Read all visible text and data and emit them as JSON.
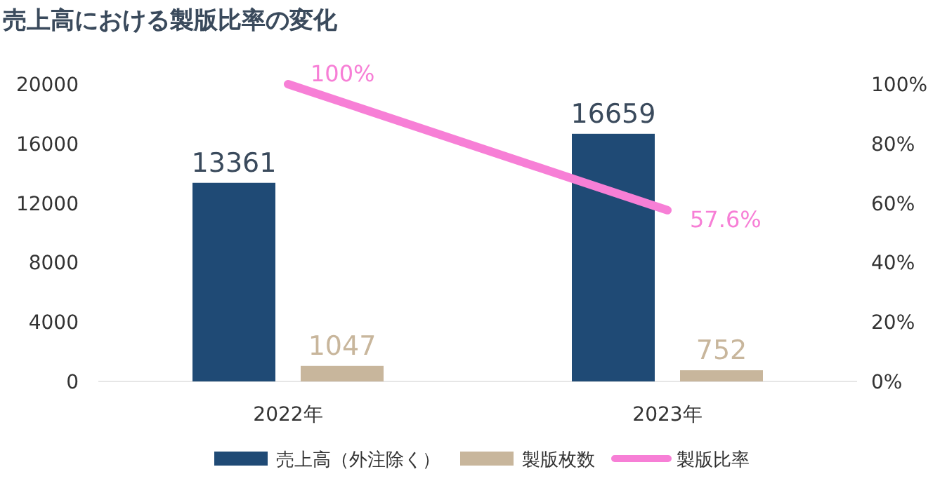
{
  "chart_data": {
    "type": "bar",
    "title": "売上高における製版比率の変化",
    "categories": [
      "2022年",
      "2023年"
    ],
    "series": [
      {
        "name": "売上高（外注除く）",
        "color": "#1f4a75",
        "values": [
          13361,
          16659
        ]
      },
      {
        "name": "製版枚数",
        "color": "#c8b69c",
        "values": [
          1047,
          752
        ]
      },
      {
        "name": "製版比率",
        "type": "line",
        "axis": "y2",
        "color": "#f77fd6",
        "values": [
          100,
          57.6
        ],
        "value_labels": [
          "100%",
          "57.6%"
        ]
      }
    ],
    "ylim": [
      0,
      20000
    ],
    "yticks": [
      0,
      4000,
      8000,
      12000,
      16000,
      20000
    ],
    "y2lim": [
      0,
      100
    ],
    "y2ticks": [
      {
        "value": 0,
        "label": "0%"
      },
      {
        "value": 20,
        "label": "20%"
      },
      {
        "value": 40,
        "label": "40%"
      },
      {
        "value": 60,
        "label": "60%"
      },
      {
        "value": 80,
        "label": "80%"
      },
      {
        "value": 100,
        "label": "100%"
      }
    ],
    "data_labels": true,
    "legend": "bottom",
    "grid": false
  }
}
